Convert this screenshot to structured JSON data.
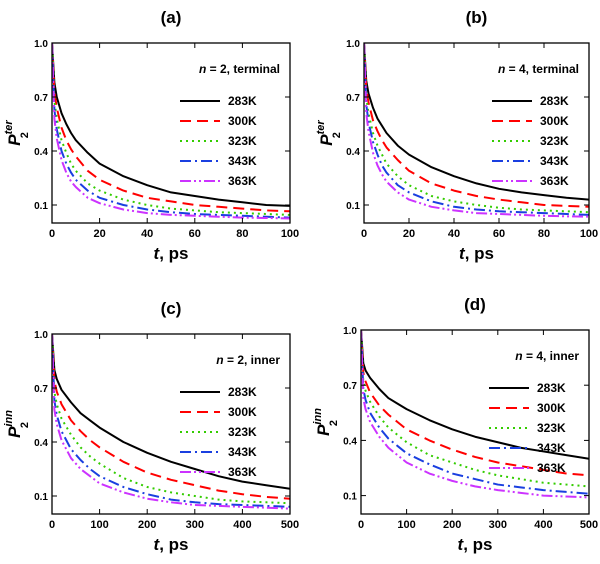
{
  "figure": {
    "panel_count": 4
  },
  "chart_data": [
    {
      "type": "line",
      "panel_label": "(a)",
      "annotation": {
        "n_prefix": "n",
        "n_value": "= 2, terminal"
      },
      "ylabel": {
        "main": "P",
        "sub": "2",
        "sup": "ter"
      },
      "xlabel": {
        "main": "t",
        "rest": ", ps"
      },
      "xlim": [
        0,
        100
      ],
      "ylim": [
        0,
        1.0
      ],
      "xticks": [
        0,
        20,
        40,
        60,
        80,
        100
      ],
      "yticks": [
        0.1,
        0.4,
        0.7,
        1.0
      ],
      "ytick_labels": [
        "0.1",
        "0.4",
        "0.7",
        "1.0"
      ],
      "x": [
        0,
        1,
        2,
        4,
        6,
        8,
        10,
        15,
        20,
        30,
        40,
        50,
        60,
        70,
        80,
        90,
        100
      ],
      "series": [
        {
          "name": "283K",
          "color": "#000000",
          "dash": "solid",
          "values": [
            1.0,
            0.78,
            0.7,
            0.61,
            0.55,
            0.5,
            0.46,
            0.39,
            0.33,
            0.26,
            0.21,
            0.17,
            0.15,
            0.13,
            0.115,
            0.1,
            0.095
          ]
        },
        {
          "name": "300K",
          "color": "#ff0000",
          "dash": "dash",
          "values": [
            1.0,
            0.73,
            0.64,
            0.53,
            0.46,
            0.41,
            0.37,
            0.29,
            0.24,
            0.18,
            0.14,
            0.12,
            0.1,
            0.09,
            0.08,
            0.07,
            0.065
          ]
        },
        {
          "name": "323K",
          "color": "#33cc00",
          "dash": "dot",
          "values": [
            1.0,
            0.68,
            0.58,
            0.46,
            0.39,
            0.33,
            0.29,
            0.22,
            0.18,
            0.13,
            0.1,
            0.08,
            0.07,
            0.06,
            0.055,
            0.05,
            0.045
          ]
        },
        {
          "name": "343K",
          "color": "#1a3fe0",
          "dash": "dashdot",
          "values": [
            1.0,
            0.63,
            0.52,
            0.4,
            0.33,
            0.28,
            0.24,
            0.18,
            0.14,
            0.1,
            0.075,
            0.06,
            0.05,
            0.045,
            0.04,
            0.035,
            0.03
          ]
        },
        {
          "name": "363K",
          "color": "#cc33ff",
          "dash": "dashdotdot",
          "values": [
            1.0,
            0.58,
            0.47,
            0.35,
            0.28,
            0.23,
            0.2,
            0.14,
            0.11,
            0.075,
            0.055,
            0.045,
            0.04,
            0.035,
            0.03,
            0.028,
            0.025
          ]
        }
      ]
    },
    {
      "type": "line",
      "panel_label": "(b)",
      "annotation": {
        "n_prefix": "n",
        "n_value": "= 4, terminal"
      },
      "ylabel": {
        "main": "P",
        "sub": "2",
        "sup": "ter"
      },
      "xlabel": {
        "main": "t",
        "rest": ", ps"
      },
      "xlim": [
        0,
        100
      ],
      "ylim": [
        0,
        1.0
      ],
      "xticks": [
        0,
        20,
        40,
        60,
        80,
        100
      ],
      "yticks": [
        0.1,
        0.4,
        0.7,
        1.0
      ],
      "ytick_labels": [
        "0.1",
        "0.4",
        "0.7",
        "1.0"
      ],
      "x": [
        0,
        1,
        2,
        4,
        6,
        8,
        10,
        15,
        20,
        30,
        40,
        50,
        60,
        70,
        80,
        90,
        100
      ],
      "series": [
        {
          "name": "283K",
          "color": "#000000",
          "dash": "solid",
          "values": [
            1.0,
            0.79,
            0.72,
            0.64,
            0.58,
            0.54,
            0.5,
            0.43,
            0.38,
            0.31,
            0.26,
            0.22,
            0.19,
            0.17,
            0.155,
            0.14,
            0.13
          ]
        },
        {
          "name": "300K",
          "color": "#ff0000",
          "dash": "dash",
          "values": [
            1.0,
            0.75,
            0.67,
            0.57,
            0.51,
            0.46,
            0.42,
            0.35,
            0.29,
            0.22,
            0.18,
            0.15,
            0.13,
            0.115,
            0.1,
            0.095,
            0.09
          ]
        },
        {
          "name": "323K",
          "color": "#33cc00",
          "dash": "dot",
          "values": [
            1.0,
            0.7,
            0.61,
            0.5,
            0.43,
            0.38,
            0.33,
            0.26,
            0.21,
            0.15,
            0.12,
            0.1,
            0.085,
            0.075,
            0.07,
            0.065,
            0.06
          ]
        },
        {
          "name": "343K",
          "color": "#1a3fe0",
          "dash": "dashdot",
          "values": [
            1.0,
            0.66,
            0.56,
            0.45,
            0.38,
            0.32,
            0.28,
            0.21,
            0.17,
            0.12,
            0.09,
            0.075,
            0.065,
            0.06,
            0.055,
            0.05,
            0.045
          ]
        },
        {
          "name": "363K",
          "color": "#cc33ff",
          "dash": "dashdotdot",
          "values": [
            1.0,
            0.61,
            0.51,
            0.39,
            0.32,
            0.27,
            0.23,
            0.17,
            0.13,
            0.09,
            0.07,
            0.055,
            0.05,
            0.045,
            0.04,
            0.037,
            0.035
          ]
        }
      ]
    },
    {
      "type": "line",
      "panel_label": "(c)",
      "annotation": {
        "n_prefix": "n",
        "n_value": "= 2, inner"
      },
      "ylabel": {
        "main": "P",
        "sub": "2",
        "sup": "inn"
      },
      "xlabel": {
        "main": "t",
        "rest": ", ps"
      },
      "xlim": [
        0,
        500
      ],
      "ylim": [
        0,
        1.0
      ],
      "xticks": [
        0,
        100,
        200,
        300,
        400,
        500
      ],
      "yticks": [
        0.1,
        0.4,
        0.7,
        1.0
      ],
      "ytick_labels": [
        "0.1",
        "0.4",
        "0.7",
        "1.0"
      ],
      "x": [
        0,
        5,
        10,
        20,
        40,
        60,
        80,
        100,
        150,
        200,
        250,
        300,
        350,
        400,
        450,
        500
      ],
      "series": [
        {
          "name": "283K",
          "color": "#000000",
          "dash": "solid",
          "values": [
            1.0,
            0.8,
            0.75,
            0.69,
            0.62,
            0.56,
            0.52,
            0.48,
            0.4,
            0.34,
            0.29,
            0.25,
            0.21,
            0.18,
            0.16,
            0.14
          ]
        },
        {
          "name": "300K",
          "color": "#ff0000",
          "dash": "dash",
          "values": [
            1.0,
            0.74,
            0.68,
            0.61,
            0.52,
            0.46,
            0.41,
            0.37,
            0.29,
            0.23,
            0.19,
            0.16,
            0.13,
            0.11,
            0.095,
            0.085
          ]
        },
        {
          "name": "323K",
          "color": "#33cc00",
          "dash": "dot",
          "values": [
            1.0,
            0.68,
            0.61,
            0.53,
            0.44,
            0.37,
            0.32,
            0.28,
            0.2,
            0.15,
            0.12,
            0.1,
            0.08,
            0.07,
            0.065,
            0.06
          ]
        },
        {
          "name": "343K",
          "color": "#1a3fe0",
          "dash": "dashdot",
          "values": [
            1.0,
            0.63,
            0.55,
            0.46,
            0.36,
            0.3,
            0.25,
            0.21,
            0.15,
            0.11,
            0.08,
            0.065,
            0.055,
            0.05,
            0.045,
            0.04
          ]
        },
        {
          "name": "363K",
          "color": "#cc33ff",
          "dash": "dashdotdot",
          "values": [
            1.0,
            0.58,
            0.5,
            0.41,
            0.31,
            0.25,
            0.21,
            0.17,
            0.12,
            0.085,
            0.065,
            0.05,
            0.045,
            0.04,
            0.035,
            0.03
          ]
        }
      ]
    },
    {
      "type": "line",
      "panel_label": "(d)",
      "annotation": {
        "n_prefix": "n",
        "n_value": "= 4, inner"
      },
      "ylabel": {
        "main": "P",
        "sub": "2",
        "sup": "inn"
      },
      "xlabel": {
        "main": "t",
        "rest": ", ps"
      },
      "xlim": [
        0,
        500
      ],
      "ylim": [
        0,
        1.0
      ],
      "xticks": [
        0,
        100,
        200,
        300,
        400,
        500
      ],
      "yticks": [
        0.1,
        0.4,
        0.7,
        1.0
      ],
      "ytick_labels": [
        "0.1",
        "0.4",
        "0.7",
        "1.0"
      ],
      "x": [
        0,
        5,
        10,
        20,
        40,
        60,
        80,
        100,
        150,
        200,
        250,
        300,
        350,
        400,
        450,
        500
      ],
      "series": [
        {
          "name": "283K",
          "color": "#000000",
          "dash": "solid",
          "values": [
            1.0,
            0.82,
            0.78,
            0.74,
            0.68,
            0.63,
            0.6,
            0.57,
            0.51,
            0.46,
            0.42,
            0.39,
            0.36,
            0.34,
            0.32,
            0.3
          ]
        },
        {
          "name": "300K",
          "color": "#ff0000",
          "dash": "dash",
          "values": [
            1.0,
            0.77,
            0.72,
            0.66,
            0.59,
            0.54,
            0.5,
            0.46,
            0.4,
            0.35,
            0.31,
            0.28,
            0.26,
            0.24,
            0.22,
            0.21
          ]
        },
        {
          "name": "323K",
          "color": "#33cc00",
          "dash": "dot",
          "values": [
            1.0,
            0.72,
            0.67,
            0.61,
            0.53,
            0.47,
            0.43,
            0.39,
            0.32,
            0.28,
            0.24,
            0.21,
            0.19,
            0.17,
            0.16,
            0.15
          ]
        },
        {
          "name": "343K",
          "color": "#1a3fe0",
          "dash": "dashdot",
          "values": [
            1.0,
            0.68,
            0.62,
            0.55,
            0.47,
            0.41,
            0.37,
            0.33,
            0.27,
            0.22,
            0.19,
            0.16,
            0.145,
            0.13,
            0.12,
            0.11
          ]
        },
        {
          "name": "363K",
          "color": "#cc33ff",
          "dash": "dashdotdot",
          "values": [
            1.0,
            0.63,
            0.57,
            0.5,
            0.42,
            0.36,
            0.32,
            0.28,
            0.22,
            0.18,
            0.15,
            0.13,
            0.115,
            0.1,
            0.095,
            0.09
          ]
        }
      ]
    }
  ]
}
